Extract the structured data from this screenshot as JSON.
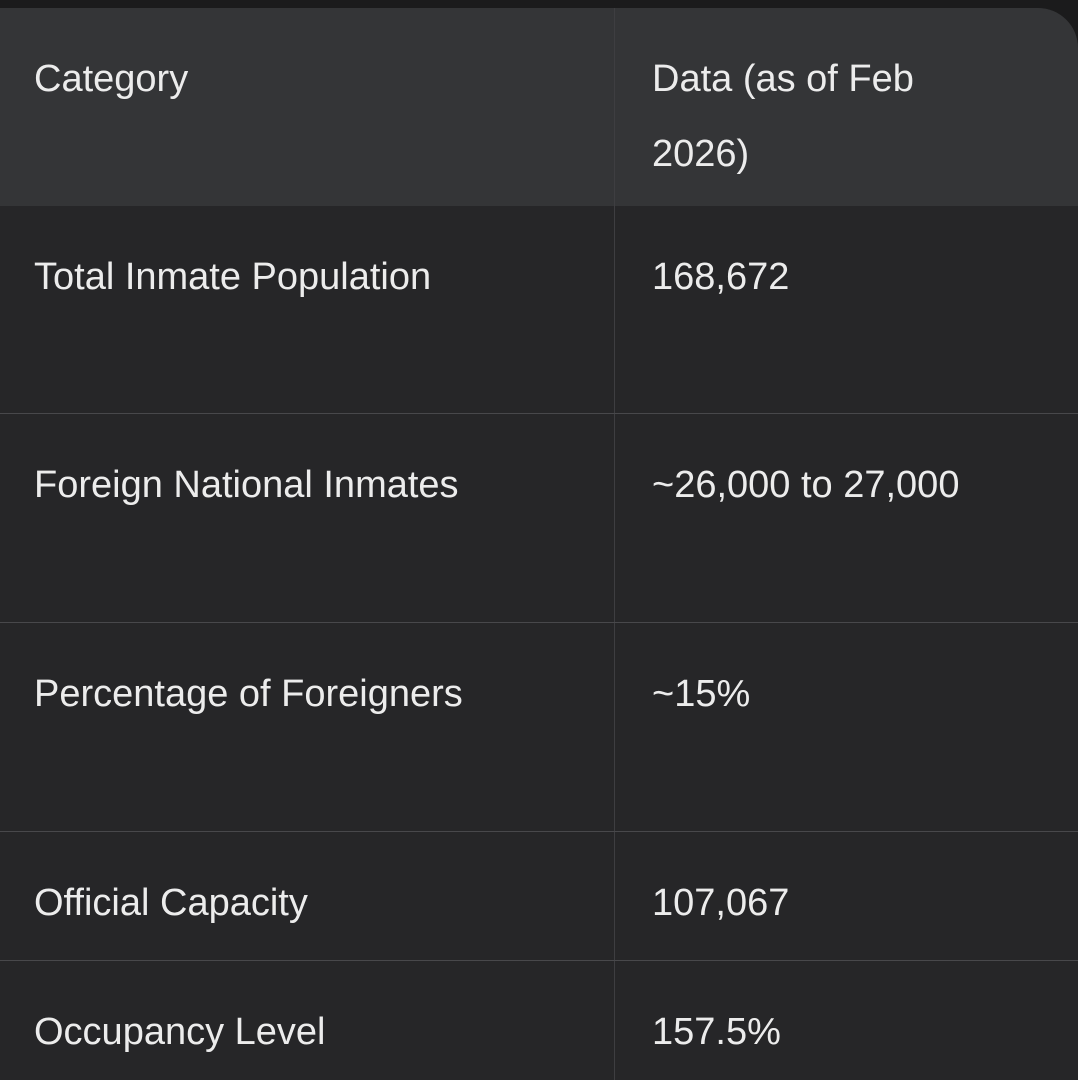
{
  "table": {
    "header": [
      "Category",
      "Data (as of Feb 2026)"
    ],
    "rows": [
      [
        "Total Inmate Population",
        "168,672"
      ],
      [
        "Foreign National Inmates",
        "~26,000 to 27,000"
      ],
      [
        "Percentage of Foreigners",
        "~15%"
      ],
      [
        "Official Capacity",
        "107,067"
      ],
      [
        "Occupancy Level",
        "157.5%"
      ]
    ]
  }
}
